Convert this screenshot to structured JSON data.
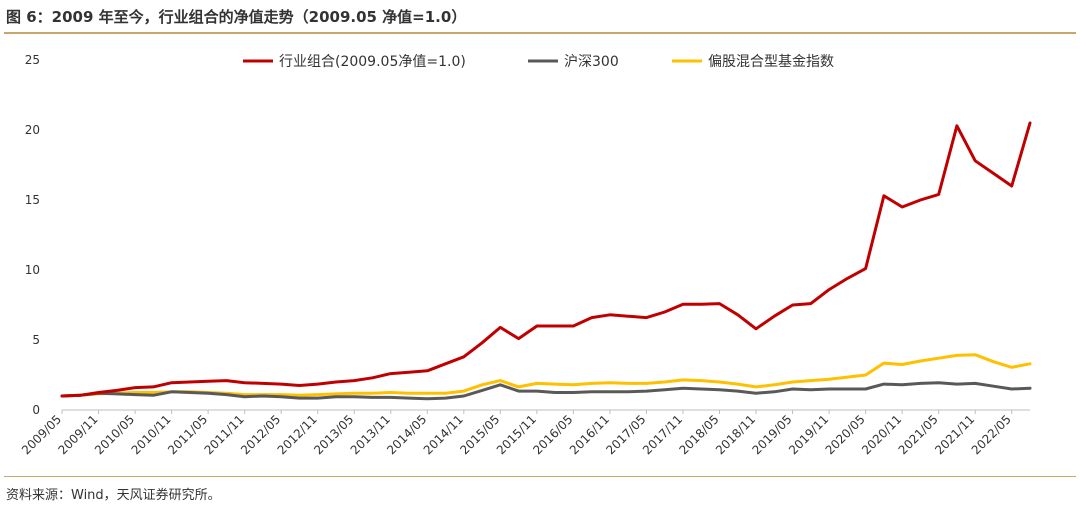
{
  "figure": {
    "title": "图 6：2009 年至今，行业组合的净值走势（2009.05 净值=1.0）",
    "source": "资料来源：Wind，天风证券研究所。"
  },
  "chart_data": {
    "type": "line",
    "x": [
      "2009/05",
      "2009/08",
      "2009/11",
      "2010/02",
      "2010/05",
      "2010/08",
      "2010/11",
      "2011/02",
      "2011/05",
      "2011/08",
      "2011/11",
      "2012/02",
      "2012/05",
      "2012/08",
      "2012/11",
      "2013/02",
      "2013/05",
      "2013/08",
      "2013/11",
      "2014/02",
      "2014/05",
      "2014/08",
      "2014/11",
      "2015/02",
      "2015/05",
      "2015/08",
      "2015/11",
      "2016/02",
      "2016/05",
      "2016/08",
      "2016/11",
      "2017/02",
      "2017/05",
      "2017/08",
      "2017/11",
      "2018/02",
      "2018/05",
      "2018/08",
      "2018/11",
      "2019/02",
      "2019/05",
      "2019/08",
      "2019/11",
      "2020/02",
      "2020/05",
      "2020/08",
      "2020/11",
      "2021/02",
      "2021/05",
      "2021/08",
      "2021/11",
      "2022/02",
      "2022/05",
      "2022/08"
    ],
    "tick_labels": [
      "2009/05",
      "2009/11",
      "2010/05",
      "2010/11",
      "2011/05",
      "2011/11",
      "2012/05",
      "2012/11",
      "2013/05",
      "2013/11",
      "2014/05",
      "2014/11",
      "2015/05",
      "2015/11",
      "2016/05",
      "2016/11",
      "2017/05",
      "2017/11",
      "2018/05",
      "2018/11",
      "2019/05",
      "2019/11",
      "2020/05",
      "2020/11",
      "2021/05",
      "2021/11",
      "2022/05"
    ],
    "series": [
      {
        "name": "行业组合(2009.05净值=1.0)",
        "color": "#c00000",
        "values": [
          1.0,
          1.05,
          1.25,
          1.4,
          1.6,
          1.65,
          1.95,
          2.0,
          2.05,
          2.1,
          1.95,
          1.9,
          1.85,
          1.75,
          1.85,
          2.0,
          2.1,
          2.3,
          2.6,
          2.7,
          2.8,
          3.3,
          3.8,
          4.8,
          5.9,
          5.1,
          6.0,
          6.0,
          6.0,
          6.6,
          6.8,
          6.7,
          6.6,
          7.0,
          7.55,
          7.55,
          7.6,
          6.8,
          5.8,
          6.7,
          7.5,
          7.6,
          8.6,
          9.4,
          10.1,
          15.3,
          14.5,
          15.0,
          15.4,
          20.3,
          17.8,
          16.9,
          16.0,
          20.5
        ]
      },
      {
        "name": "沪深300",
        "color": "#595959",
        "values": [
          1.0,
          1.05,
          1.2,
          1.15,
          1.1,
          1.05,
          1.3,
          1.25,
          1.2,
          1.1,
          0.95,
          1.0,
          0.95,
          0.85,
          0.85,
          0.95,
          0.95,
          0.9,
          0.9,
          0.85,
          0.8,
          0.85,
          1.0,
          1.4,
          1.8,
          1.35,
          1.35,
          1.25,
          1.25,
          1.3,
          1.3,
          1.3,
          1.35,
          1.45,
          1.55,
          1.5,
          1.45,
          1.35,
          1.2,
          1.3,
          1.5,
          1.45,
          1.5,
          1.5,
          1.5,
          1.85,
          1.8,
          1.9,
          1.95,
          1.85,
          1.9,
          1.7,
          1.5,
          1.55
        ]
      },
      {
        "name": "偏股混合型基金指数",
        "color": "#ffc000",
        "values": [
          1.0,
          1.05,
          1.15,
          1.2,
          1.25,
          1.25,
          1.3,
          1.3,
          1.25,
          1.2,
          1.1,
          1.1,
          1.1,
          1.05,
          1.1,
          1.15,
          1.2,
          1.2,
          1.25,
          1.2,
          1.2,
          1.2,
          1.35,
          1.8,
          2.1,
          1.65,
          1.9,
          1.85,
          1.8,
          1.9,
          1.95,
          1.9,
          1.9,
          2.0,
          2.15,
          2.1,
          2.0,
          1.85,
          1.65,
          1.8,
          2.0,
          2.1,
          2.2,
          2.35,
          2.5,
          3.35,
          3.25,
          3.5,
          3.7,
          3.9,
          3.95,
          3.45,
          3.05,
          3.3
        ]
      }
    ],
    "ylim": [
      0,
      25
    ],
    "yticks": [
      0,
      5,
      10,
      15,
      20,
      25
    ],
    "grid": false,
    "legend_position": "top"
  }
}
